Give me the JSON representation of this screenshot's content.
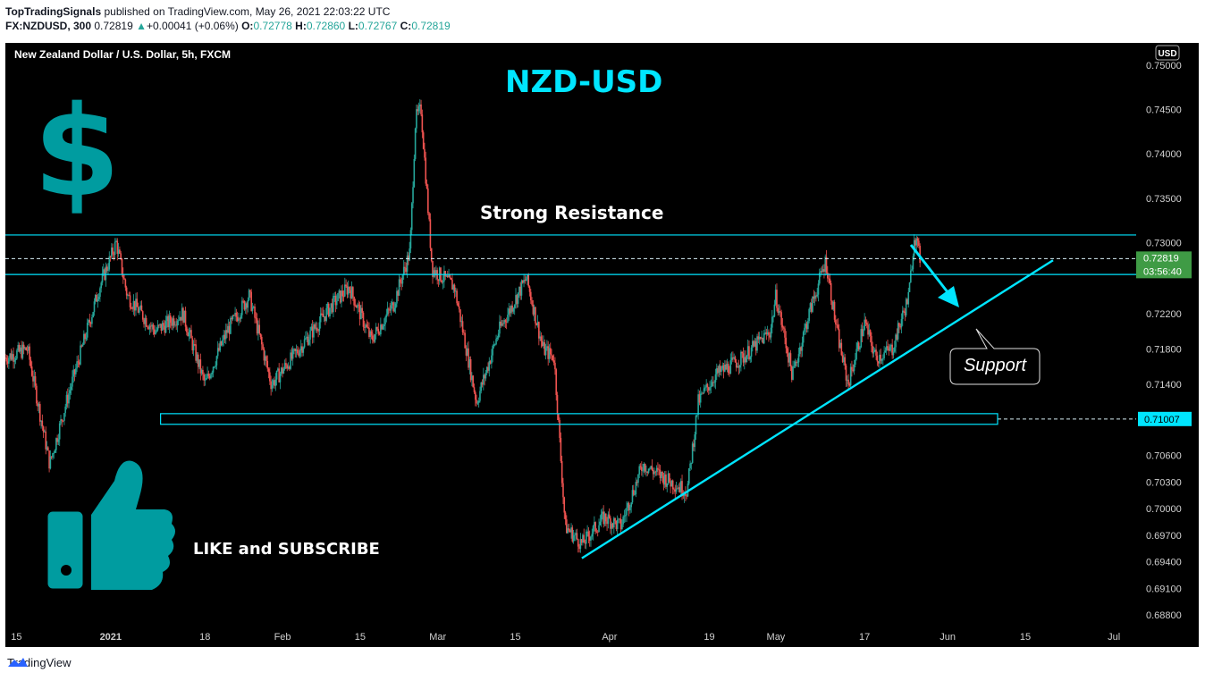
{
  "header": {
    "publisher": "TopTradingSignals",
    "published_text": "published on TradingView.com, May 26, 2021 22:03:22 UTC",
    "symbol": "FX:NZDUSD, 300",
    "last": "0.72819",
    "change": "+0.00041 (+0.06%)",
    "open_label": "O:",
    "open": "0.72778",
    "high_label": "H:",
    "high": "0.72860",
    "low_label": "L:",
    "low": "0.72767",
    "close_label": "C:",
    "close": "0.72819"
  },
  "chart_title": "New Zealand Dollar / U.S. Dollar, 5h, FXCM",
  "currency_badge": "USD",
  "annotations": {
    "headline": "NZD-USD",
    "resistance": "Strong Resistance",
    "support": "Support",
    "cta": "LIKE and SUBSCRIBE",
    "dollar_glyph": "$"
  },
  "price_tags": {
    "last_price": "0.72819",
    "countdown": "03:56:40",
    "support_level": "0.71007"
  },
  "colors": {
    "background": "#000000",
    "up": "#26a69a",
    "down": "#ef5350",
    "level_line": "#00e5ff",
    "trend_line": "#00e5ff",
    "headline": "#00e5ff",
    "icon": "#009ca0",
    "last_price_tag": "#3f9b45"
  },
  "chart_data": {
    "type": "candlestick",
    "title": "New Zealand Dollar / U.S. Dollar, 5h, FXCM",
    "y_ticks": [
      "0.75000",
      "0.74500",
      "0.74000",
      "0.73500",
      "0.73000",
      "0.72200",
      "0.71800",
      "0.71400",
      "0.70600",
      "0.70300",
      "0.70000",
      "0.69700",
      "0.69400",
      "0.69100",
      "0.68800"
    ],
    "x_ticks": [
      "15",
      "2021",
      "18",
      "Feb",
      "15",
      "Mar",
      "15",
      "Apr",
      "19",
      "May",
      "17",
      "Jun",
      "15",
      "Jul"
    ],
    "price_path": [
      [
        "2020-12-13",
        0.717
      ],
      [
        "2020-12-17",
        0.718
      ],
      [
        "2020-12-21",
        0.705
      ],
      [
        "2020-12-24",
        0.712
      ],
      [
        "2020-12-30",
        0.725
      ],
      [
        "2021-01-02",
        0.73
      ],
      [
        "2021-01-04",
        0.724
      ],
      [
        "2021-01-09",
        0.72
      ],
      [
        "2021-01-14",
        0.722
      ],
      [
        "2021-01-18",
        0.714
      ],
      [
        "2021-01-22",
        0.72
      ],
      [
        "2021-01-26",
        0.724
      ],
      [
        "2021-01-30",
        0.714
      ],
      [
        "2021-02-04",
        0.718
      ],
      [
        "2021-02-10",
        0.723
      ],
      [
        "2021-02-13",
        0.725
      ],
      [
        "2021-02-17",
        0.719
      ],
      [
        "2021-02-21",
        0.723
      ],
      [
        "2021-02-24",
        0.729
      ],
      [
        "2021-02-25",
        0.744
      ],
      [
        "2021-02-26",
        0.745
      ],
      [
        "2021-02-28",
        0.727
      ],
      [
        "2021-03-04",
        0.725
      ],
      [
        "2021-03-08",
        0.712
      ],
      [
        "2021-03-12",
        0.72
      ],
      [
        "2021-03-17",
        0.726
      ],
      [
        "2021-03-20",
        0.718
      ],
      [
        "2021-03-22",
        0.717
      ],
      [
        "2021-03-24",
        0.698
      ],
      [
        "2021-03-27",
        0.696
      ],
      [
        "2021-03-31",
        0.699
      ],
      [
        "2021-04-03",
        0.698
      ],
      [
        "2021-04-07",
        0.705
      ],
      [
        "2021-04-12",
        0.703
      ],
      [
        "2021-04-15",
        0.702
      ],
      [
        "2021-04-17",
        0.712
      ],
      [
        "2021-04-20",
        0.715
      ],
      [
        "2021-04-25",
        0.717
      ],
      [
        "2021-04-30",
        0.72
      ],
      [
        "2021-05-01",
        0.724
      ],
      [
        "2021-05-04",
        0.715
      ],
      [
        "2021-05-07",
        0.722
      ],
      [
        "2021-05-10",
        0.728
      ],
      [
        "2021-05-12",
        0.72
      ],
      [
        "2021-05-14",
        0.714
      ],
      [
        "2021-05-17",
        0.721
      ],
      [
        "2021-05-19",
        0.717
      ],
      [
        "2021-05-22",
        0.718
      ],
      [
        "2021-05-25",
        0.724
      ],
      [
        "2021-05-26",
        0.731
      ],
      [
        "2021-05-27",
        0.7282
      ]
    ],
    "levels": [
      {
        "name": "Strong Resistance",
        "values": [
          0.73085,
          0.7264
        ]
      },
      {
        "name": "Support",
        "values": [
          0.7107,
          0.7095
        ]
      }
    ],
    "last_price": 0.72819,
    "ylim": [
      0.687,
      0.7505
    ],
    "xlim": [
      "2020-12-13",
      "2021-07-05"
    ],
    "grid": false
  }
}
